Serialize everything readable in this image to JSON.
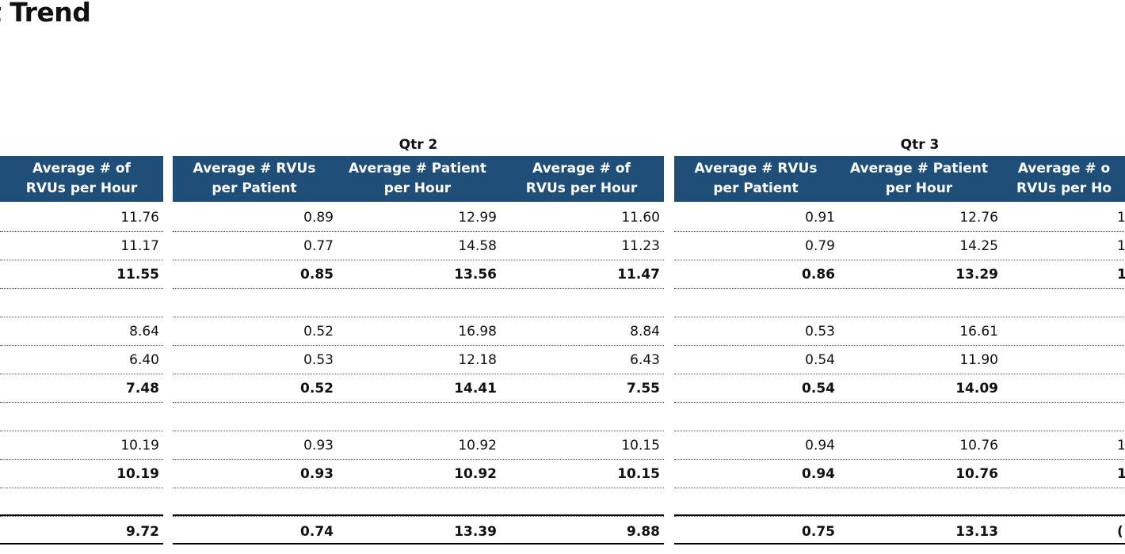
{
  "title": "t Trend",
  "columns": {
    "rvus_per_patient": "Average # RVUs\nper Patient",
    "patient_per_hour": "Average # Patient\nper Hour",
    "rvus_per_hour": "Average # of\nRVUs per Hour",
    "rvus_per_hour_q3_clipped": "Average # o\nRVUs per Ho"
  },
  "qtr1_partial": {
    "header": "Average # of\nRVUs per Hour",
    "values": [
      "11.76",
      "11.17",
      "11.55",
      "",
      "8.64",
      "6.40",
      "7.48",
      "",
      "10.19",
      "10.19",
      "",
      "9.72"
    ]
  },
  "qtr2": {
    "label": "Qtr 2",
    "rows": [
      [
        "0.89",
        "12.99",
        "11.60"
      ],
      [
        "0.77",
        "14.58",
        "11.23"
      ],
      [
        "0.85",
        "13.56",
        "11.47"
      ],
      [
        "",
        "",
        ""
      ],
      [
        "0.52",
        "16.98",
        "8.84"
      ],
      [
        "0.53",
        "12.18",
        "6.43"
      ],
      [
        "0.52",
        "14.41",
        "7.55"
      ],
      [
        "",
        "",
        ""
      ],
      [
        "0.93",
        "10.92",
        "10.15"
      ],
      [
        "0.93",
        "10.92",
        "10.15"
      ],
      [
        "",
        "",
        ""
      ],
      [
        "0.74",
        "13.39",
        "9.88"
      ]
    ]
  },
  "qtr3": {
    "label": "Qtr 3",
    "rows": [
      [
        "0.91",
        "12.76",
        "1"
      ],
      [
        "0.79",
        "14.25",
        "1"
      ],
      [
        "0.86",
        "13.29",
        "1"
      ],
      [
        "",
        "",
        ""
      ],
      [
        "0.53",
        "16.61",
        ""
      ],
      [
        "0.54",
        "11.90",
        ""
      ],
      [
        "0.54",
        "14.09",
        ""
      ],
      [
        "",
        "",
        ""
      ],
      [
        "0.94",
        "10.76",
        "1"
      ],
      [
        "0.94",
        "10.76",
        "1("
      ],
      [
        "",
        "",
        ""
      ],
      [
        "0.75",
        "13.13",
        "("
      ]
    ]
  },
  "colors": {
    "header_bg": "#1f4e79",
    "header_text": "#ffffff"
  }
}
